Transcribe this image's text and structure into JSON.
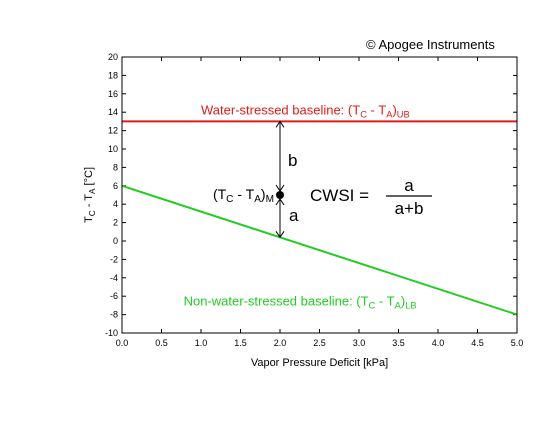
{
  "copyright": "© Apogee Instruments",
  "chart_data": {
    "type": "line",
    "title": "",
    "xlabel": "Vapor Pressure Deficit [kPa]",
    "ylabel_parts": [
      "T",
      "C",
      " - T",
      "A",
      " [°C]"
    ],
    "xlim": [
      0,
      5
    ],
    "ylim": [
      -10,
      20
    ],
    "x_ticks": [
      "0.0",
      "0.5",
      "1.0",
      "1.5",
      "2.0",
      "2.5",
      "3.0",
      "3.5",
      "4.0",
      "4.5",
      "5.0"
    ],
    "y_ticks": [
      "-10",
      "-8",
      "-6",
      "-4",
      "-2",
      "0",
      "2",
      "4",
      "6",
      "8",
      "10",
      "12",
      "14",
      "16",
      "18",
      "20"
    ],
    "grid": false,
    "series": [
      {
        "key": "upper",
        "x": [
          0,
          5
        ],
        "y": [
          13,
          13
        ],
        "color": "#e01b1b"
      },
      {
        "key": "lower",
        "x": [
          0,
          5
        ],
        "y": [
          6,
          -8
        ],
        "color": "#22cc22"
      }
    ],
    "measured_point": {
      "x": 2.0,
      "y": 5.0
    },
    "annotations": {
      "upper_label": [
        "Water-stressed baseline: (T",
        "C",
        " - T",
        "A",
        ")",
        "UB"
      ],
      "lower_label": [
        "Non-water-stressed baseline: (T",
        "C",
        " - T",
        "A",
        ")",
        "LB"
      ],
      "point_label": [
        "(T",
        "C",
        " - T",
        "A",
        ")",
        "M"
      ],
      "b": "b",
      "a": "a",
      "cwsi_lhs": "CWSI =",
      "cwsi_numerator": "a",
      "cwsi_denominator": "a+b"
    }
  }
}
